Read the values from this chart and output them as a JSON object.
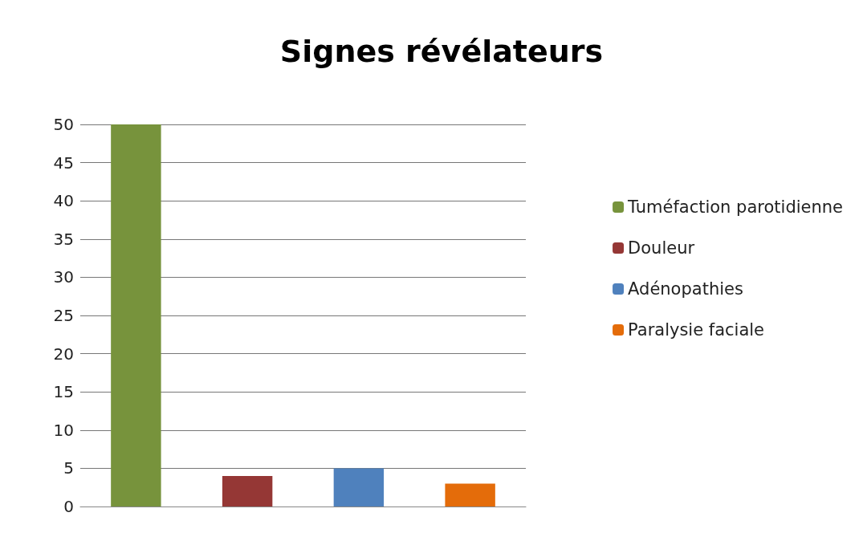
{
  "chart_data": {
    "type": "bar",
    "title": "Signes révélateurs",
    "categories": [
      null,
      null,
      null,
      null
    ],
    "series": [
      {
        "name": "Tuméfaction parotidienne",
        "color": "#77933c",
        "values": [
          50,
          null,
          null,
          null
        ]
      },
      {
        "name": "Douleur",
        "color": "#953735",
        "values": [
          null,
          4,
          null,
          null
        ]
      },
      {
        "name": "Adénopathies",
        "color": "#4f81bd",
        "values": [
          null,
          null,
          5,
          null
        ]
      },
      {
        "name": "Paralysie faciale",
        "color": "#e46c0a",
        "values": [
          null,
          null,
          null,
          3
        ]
      }
    ],
    "ylim": [
      0,
      50
    ],
    "yticks": [
      0,
      5,
      10,
      15,
      20,
      25,
      30,
      35,
      40,
      45,
      50
    ],
    "grid": "y",
    "legend": "right",
    "tick_labels": "y"
  }
}
